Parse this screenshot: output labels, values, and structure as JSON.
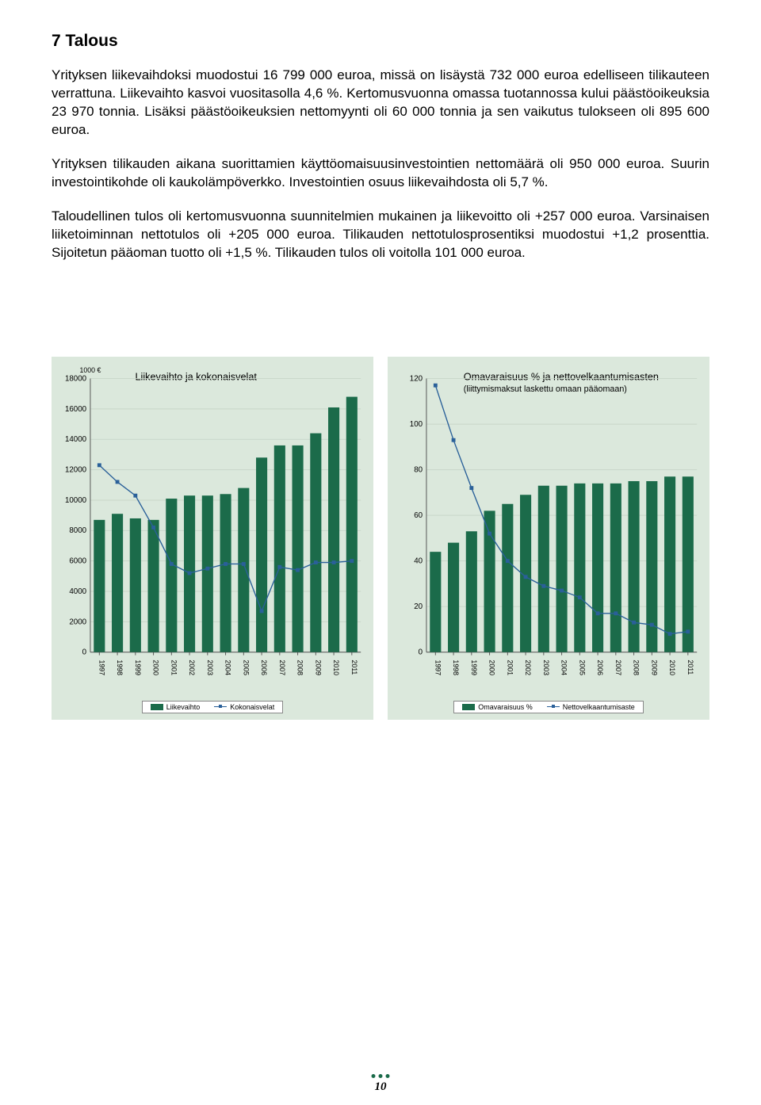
{
  "heading": "7 Talous",
  "paragraphs": {
    "p1": "Yrityksen liikevaihdoksi muodostui 16 799 000 euroa, missä on lisäystä 732 000 euroa edelliseen tilikauteen verrattuna. Liikevaihto kasvoi vuositasolla 4,6 %. Kertomusvuonna omassa tuotannossa kului päästöoikeuksia 23 970 tonnia. Lisäksi päästöoikeuksien nettomyynti oli 60 000 tonnia ja sen vaikutus tulokseen oli 895 600 euroa.",
    "p2": "Yrityksen tilikauden aikana suorittamien käyttöomaisuusinvestointien nettomäärä oli 950 000 euroa. Suurin investointikohde oli kaukolämpöverkko. Investointien osuus liikevaihdosta oli 5,7 %.",
    "p3": "Taloudellinen tulos oli kertomusvuonna suunnitelmien mukainen ja liikevoitto oli +257 000 euroa. Varsinaisen liiketoiminnan nettotulos oli +205 000 euroa. Tilikauden nettotulosprosentiksi muodostui +1,2 prosenttia. Sijoitetun pääoman tuotto oli +1,5 %. Tilikauden tulos oli voitolla 101 000 euroa."
  },
  "chart1": {
    "type": "bar-line",
    "y_unit": "1000 €",
    "title": "Liikevaihto ja kokonaisvelat",
    "grid_color": "#c8d6c9",
    "bg_color": "#dbe8dc",
    "bar_color": "#1b6b4a",
    "line_color": "#2a6099",
    "marker_color": "#2a6099",
    "axis_color": "#555555",
    "ylim": [
      0,
      18000
    ],
    "ytick_step": 2000,
    "yticks": [
      "0",
      "2000",
      "4000",
      "6000",
      "8000",
      "10000",
      "12000",
      "14000",
      "16000",
      "18000"
    ],
    "categories": [
      "1997",
      "1998",
      "1999",
      "2000",
      "2001",
      "2002",
      "2003",
      "2004",
      "2005",
      "2006",
      "2007",
      "2008",
      "2009",
      "2010",
      "2011"
    ],
    "bar_values": [
      8700,
      9100,
      8800,
      8700,
      10100,
      10300,
      10300,
      10400,
      10800,
      12800,
      13600,
      13600,
      14400,
      16100,
      16800
    ],
    "line_values": [
      12300,
      11200,
      10300,
      8200,
      5800,
      5200,
      5500,
      5800,
      5800,
      2700,
      5600,
      5400,
      5900,
      5900,
      6000
    ],
    "legend_bar": "Liikevaihto",
    "legend_line": "Kokonaisvelat"
  },
  "chart2": {
    "type": "bar-line",
    "title": "Omavaraisuus % ja nettovelkaantumisasten",
    "subtitle": "(liittymismaksut laskettu omaan pääomaan)",
    "grid_color": "#c8d6c9",
    "bg_color": "#dbe8dc",
    "bar_color": "#1b6b4a",
    "line_color": "#2a6099",
    "marker_color": "#2a6099",
    "axis_color": "#555555",
    "ylim": [
      0,
      120
    ],
    "ytick_step": 20,
    "yticks": [
      "0",
      "20",
      "40",
      "60",
      "80",
      "100",
      "120"
    ],
    "categories": [
      "1997",
      "1998",
      "1999",
      "2000",
      "2001",
      "2002",
      "2003",
      "2004",
      "2005",
      "2006",
      "2007",
      "2008",
      "2009",
      "2010",
      "2011"
    ],
    "bar_values": [
      44,
      48,
      53,
      62,
      65,
      69,
      73,
      73,
      74,
      74,
      74,
      75,
      75,
      77,
      77
    ],
    "line_values": [
      117,
      93,
      72,
      52,
      40,
      33,
      29,
      27,
      24,
      17,
      17,
      13,
      12,
      8,
      9
    ],
    "legend_bar": "Omavaraisuus %",
    "legend_line": "Nettovelkaantumisaste"
  },
  "page_number": "10"
}
